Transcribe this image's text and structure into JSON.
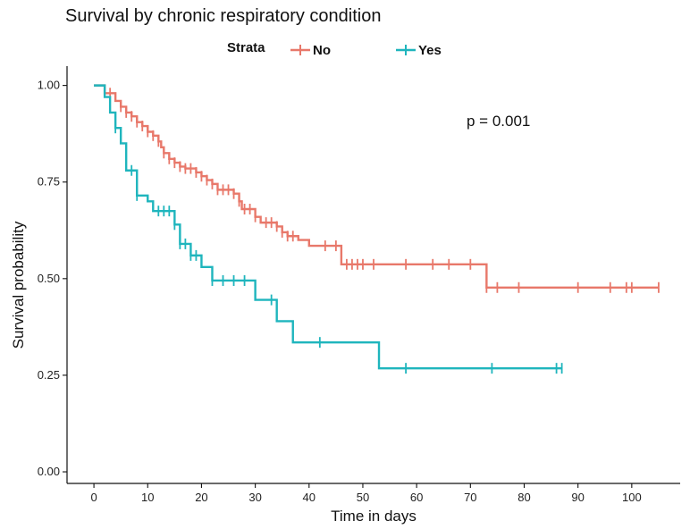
{
  "chart_data": {
    "type": "line",
    "subtype": "kaplan-meier-step",
    "title": "Survival by chronic respiratory condition",
    "xlabel": "Time in days",
    "ylabel": "Survival probability",
    "xlim": [
      -5,
      109
    ],
    "ylim": [
      -0.03,
      1.05
    ],
    "x_ticks": [
      0,
      10,
      20,
      30,
      40,
      50,
      60,
      70,
      80,
      90,
      100
    ],
    "y_ticks": [
      0.0,
      0.25,
      0.5,
      0.75,
      1.0
    ],
    "y_tick_labels": [
      "0.00",
      "0.25",
      "0.50",
      "0.75",
      "1.00"
    ],
    "grid": false,
    "legend": {
      "title": "Strata",
      "position": "top",
      "entries": [
        "No",
        "Yes"
      ]
    },
    "annotation": "p = 0.001",
    "series": [
      {
        "name": "No",
        "color": "#e8786a",
        "steps": [
          [
            0,
            1.0
          ],
          [
            2,
            0.98
          ],
          [
            4,
            0.96
          ],
          [
            5,
            0.945
          ],
          [
            6,
            0.93
          ],
          [
            7,
            0.92
          ],
          [
            8,
            0.905
          ],
          [
            9,
            0.895
          ],
          [
            10,
            0.88
          ],
          [
            11,
            0.87
          ],
          [
            12,
            0.855
          ],
          [
            12.5,
            0.84
          ],
          [
            13,
            0.825
          ],
          [
            14,
            0.81
          ],
          [
            15,
            0.8
          ],
          [
            16,
            0.79
          ],
          [
            17,
            0.785
          ],
          [
            19,
            0.775
          ],
          [
            20,
            0.765
          ],
          [
            21,
            0.755
          ],
          [
            22,
            0.745
          ],
          [
            23,
            0.73
          ],
          [
            26,
            0.72
          ],
          [
            27,
            0.7
          ],
          [
            27.5,
            0.68
          ],
          [
            30,
            0.66
          ],
          [
            31,
            0.645
          ],
          [
            34,
            0.635
          ],
          [
            35,
            0.62
          ],
          [
            36,
            0.61
          ],
          [
            38,
            0.6
          ],
          [
            40,
            0.585
          ],
          [
            46,
            0.537
          ],
          [
            73,
            0.477
          ],
          [
            105,
            0.477
          ]
        ],
        "censor": [
          3,
          5,
          6,
          7,
          8,
          9,
          10,
          11,
          12,
          13,
          14,
          15,
          16,
          17,
          18,
          19,
          20,
          21,
          22,
          23,
          24,
          25,
          26,
          27,
          28,
          29,
          30,
          32,
          33,
          34,
          35,
          36,
          37,
          43,
          45,
          47,
          48,
          49,
          50,
          52,
          58,
          63,
          66,
          70,
          73,
          75,
          79,
          90,
          96,
          99,
          100,
          105
        ]
      },
      {
        "name": "Yes",
        "color": "#1fb5bd",
        "steps": [
          [
            0,
            1.0
          ],
          [
            2,
            0.97
          ],
          [
            3,
            0.93
          ],
          [
            4,
            0.89
          ],
          [
            5,
            0.85
          ],
          [
            6,
            0.78
          ],
          [
            8,
            0.715
          ],
          [
            10,
            0.7
          ],
          [
            11,
            0.675
          ],
          [
            15,
            0.64
          ],
          [
            16,
            0.59
          ],
          [
            18,
            0.56
          ],
          [
            20,
            0.53
          ],
          [
            22,
            0.495
          ],
          [
            30,
            0.445
          ],
          [
            34,
            0.39
          ],
          [
            37,
            0.335
          ],
          [
            53,
            0.268
          ],
          [
            87,
            0.268
          ]
        ],
        "censor": [
          4,
          7,
          8,
          12,
          13,
          14,
          15,
          16,
          17,
          18,
          19,
          22,
          24,
          26,
          28,
          33,
          42,
          58,
          74,
          86,
          87
        ]
      }
    ]
  }
}
